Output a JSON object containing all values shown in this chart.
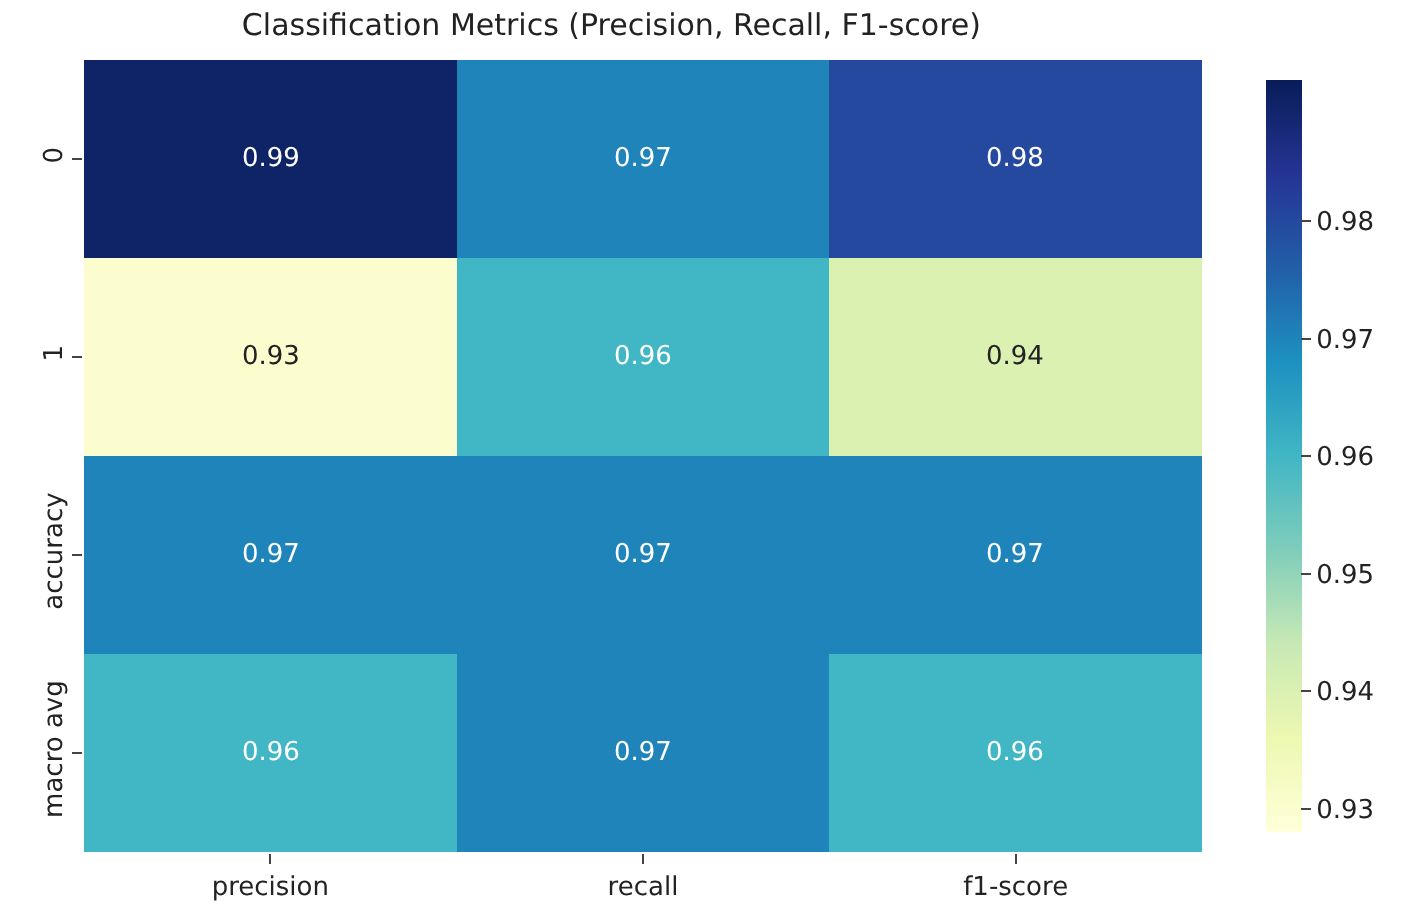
{
  "chart_data": {
    "type": "heatmap",
    "title": "Classification Metrics (Precision, Recall, F1-score)",
    "categories": [
      "precision",
      "recall",
      "f1-score"
    ],
    "y_categories": [
      "0",
      "1",
      "accuracy",
      "macro avg"
    ],
    "cells": [
      [
        0.99,
        0.97,
        0.98
      ],
      [
        0.93,
        0.96,
        0.94
      ],
      [
        0.97,
        0.97,
        0.97
      ],
      [
        0.96,
        0.97,
        0.96
      ]
    ],
    "data_labels": true,
    "clim": [
      0.928,
      0.992
    ],
    "cticks": [
      0.93,
      0.94,
      0.95,
      0.96,
      0.97,
      0.98
    ]
  }
}
